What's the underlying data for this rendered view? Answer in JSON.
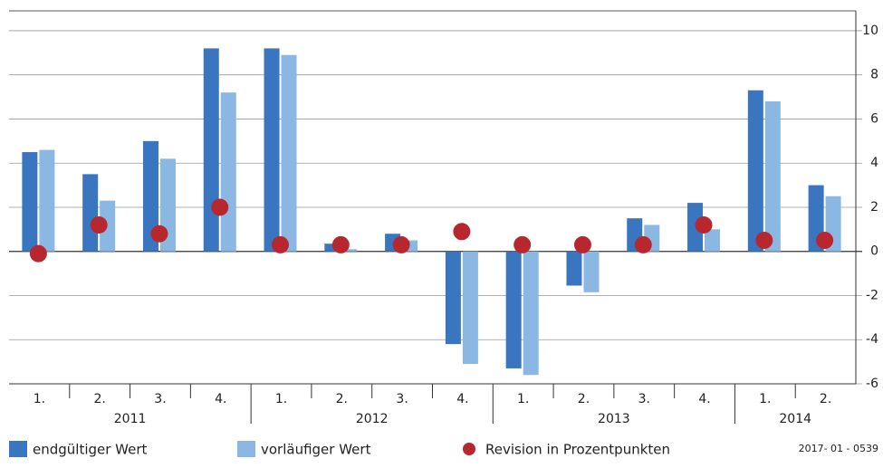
{
  "chart_data": {
    "type": "bar",
    "categories": [
      "1.",
      "2.",
      "3.",
      "4.",
      "1.",
      "2.",
      "3.",
      "4.",
      "1.",
      "2.",
      "3.",
      "4.",
      "1.",
      "2."
    ],
    "groups": [
      "2011",
      "2012",
      "2013",
      "2014"
    ],
    "series": [
      {
        "name": "endgültiger Wert",
        "color": "#3a75c0",
        "values": [
          4.5,
          3.5,
          5.0,
          9.2,
          9.2,
          0.35,
          0.8,
          -4.2,
          -5.3,
          -1.55,
          1.5,
          2.2,
          7.3,
          3.0
        ]
      },
      {
        "name": "vorläufiger  Wert",
        "color": "#8bb7e3",
        "values": [
          4.6,
          2.3,
          4.2,
          7.2,
          8.9,
          0.1,
          0.5,
          -5.1,
          -5.6,
          -1.85,
          1.2,
          1.0,
          6.8,
          2.5
        ]
      },
      {
        "name": "Revision in Prozentpunkten",
        "color": "#b8262e",
        "type": "scatter",
        "values": [
          -0.1,
          1.2,
          0.8,
          2.0,
          0.3,
          0.3,
          0.3,
          0.9,
          0.3,
          0.3,
          0.3,
          1.2,
          0.5,
          0.5
        ]
      }
    ],
    "ylim": [
      -6,
      10.9
    ],
    "yticks": [
      -6,
      -4,
      -2,
      0,
      2,
      4,
      6,
      8,
      10
    ],
    "grid": true,
    "note": "2017- 01 - 0539"
  }
}
